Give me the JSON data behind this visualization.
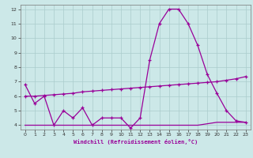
{
  "line1_x": [
    0,
    1,
    2,
    3,
    4,
    5,
    6,
    7,
    8,
    9,
    10,
    11,
    12,
    13,
    14,
    15,
    16,
    17,
    18,
    19,
    20,
    21,
    22,
    23
  ],
  "line1_y": [
    6.8,
    5.5,
    6.0,
    4.0,
    5.0,
    4.5,
    5.2,
    4.0,
    4.5,
    4.5,
    4.5,
    3.8,
    4.5,
    8.5,
    11.0,
    12.0,
    12.0,
    11.0,
    9.5,
    7.5,
    6.2,
    5.0,
    4.3,
    4.2
  ],
  "line2_x": [
    0,
    1,
    2,
    3,
    4,
    5,
    6,
    7,
    8,
    9,
    10,
    11,
    12,
    13,
    14,
    15,
    16,
    17,
    18,
    19,
    20,
    21,
    22,
    23
  ],
  "line2_y": [
    6.0,
    6.0,
    6.05,
    6.1,
    6.15,
    6.2,
    6.3,
    6.35,
    6.4,
    6.45,
    6.5,
    6.55,
    6.6,
    6.65,
    6.7,
    6.75,
    6.8,
    6.85,
    6.9,
    6.95,
    7.0,
    7.1,
    7.2,
    7.35
  ],
  "line3_x": [
    0,
    1,
    2,
    3,
    4,
    5,
    6,
    7,
    8,
    9,
    10,
    11,
    12,
    13,
    14,
    15,
    16,
    17,
    18,
    19,
    20,
    21,
    22,
    23
  ],
  "line3_y": [
    4.0,
    4.0,
    4.0,
    4.0,
    4.0,
    4.0,
    4.0,
    4.0,
    4.0,
    4.0,
    4.0,
    4.0,
    4.0,
    4.0,
    4.0,
    4.0,
    4.0,
    4.0,
    4.0,
    4.1,
    4.2,
    4.2,
    4.2,
    4.2
  ],
  "line_color": "#990099",
  "bg_color": "#cce8e8",
  "grid_color": "#aacccc",
  "xlabel": "Windchill (Refroidissement éolien,°C)",
  "xlim": [
    0,
    23
  ],
  "ylim": [
    3.7,
    12.3
  ],
  "yticks": [
    4,
    5,
    6,
    7,
    8,
    9,
    10,
    11,
    12
  ],
  "xticks": [
    0,
    1,
    2,
    3,
    4,
    5,
    6,
    7,
    8,
    9,
    10,
    11,
    12,
    13,
    14,
    15,
    16,
    17,
    18,
    19,
    20,
    21,
    22,
    23
  ]
}
